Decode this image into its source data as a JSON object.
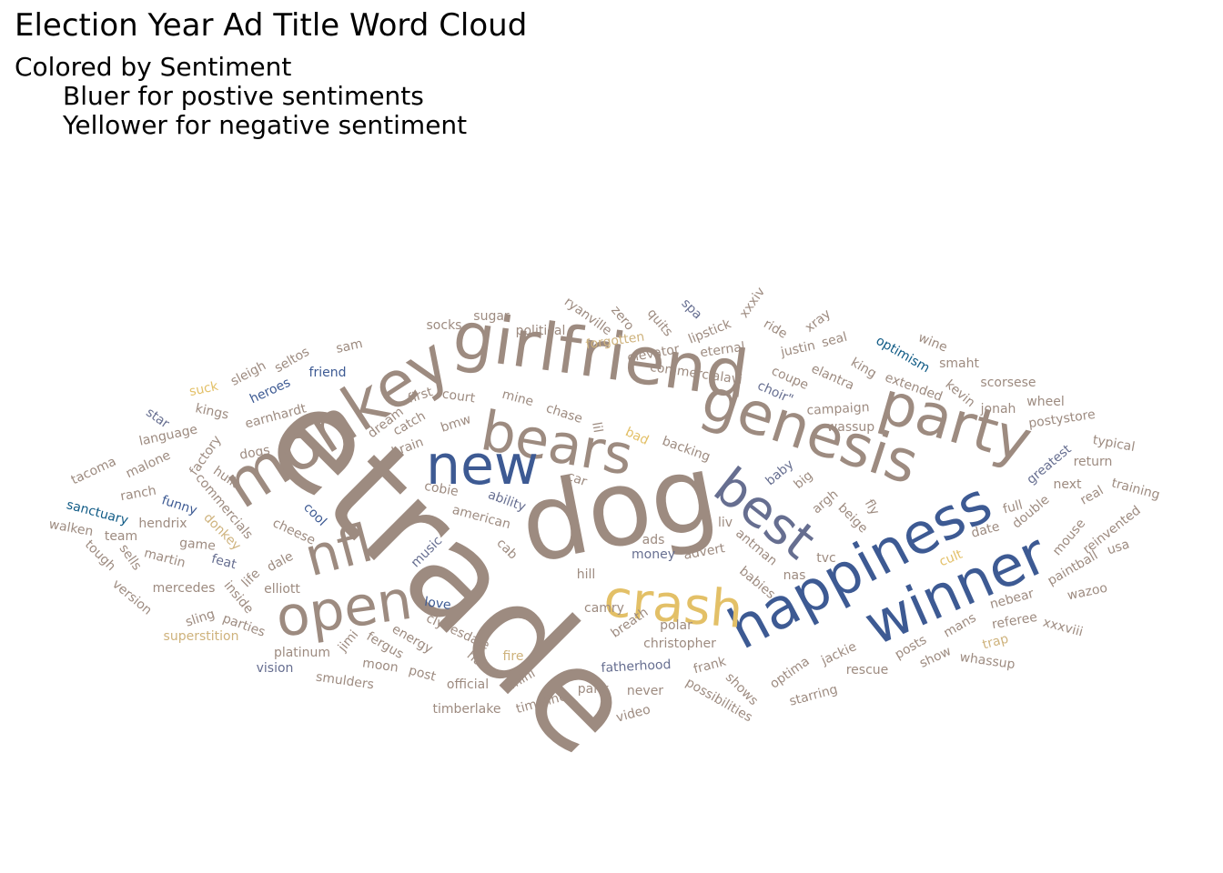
{
  "title": "Election Year Ad Title Word Cloud",
  "subtitle": {
    "line1": "Colored by Sentiment",
    "line2": "Bluer for postive sentiments",
    "line3": "Yellower for negative sentiment"
  },
  "chart_data": {
    "type": "wordcloud",
    "colors": {
      "neutral": "#9d8b80",
      "positive": "#3d5a93",
      "strong_positive": "#0f5a85",
      "mid_positive": "#666e90",
      "negative": "#e3c067",
      "mild_negative": "#ceb27c"
    },
    "words": [
      {
        "text": "etrade",
        "sentiment": "neutral"
      },
      {
        "text": "dog",
        "sentiment": "neutral"
      },
      {
        "text": "girlfriend",
        "sentiment": "neutral"
      },
      {
        "text": "genesis",
        "sentiment": "neutral"
      },
      {
        "text": "monkey",
        "sentiment": "neutral"
      },
      {
        "text": "bears",
        "sentiment": "neutral"
      },
      {
        "text": "party",
        "sentiment": "neutral"
      },
      {
        "text": "happiness",
        "sentiment": "positive"
      },
      {
        "text": "winner",
        "sentiment": "positive"
      },
      {
        "text": "best",
        "sentiment": "mid_positive"
      },
      {
        "text": "new",
        "sentiment": "positive"
      },
      {
        "text": "crash",
        "sentiment": "negative"
      },
      {
        "text": "open",
        "sentiment": "neutral"
      },
      {
        "text": "nfl",
        "sentiment": "neutral"
      },
      {
        "text": "sugar",
        "sentiment": "neutral"
      },
      {
        "text": "political",
        "sentiment": "neutral"
      },
      {
        "text": "socks",
        "sentiment": "neutral"
      },
      {
        "text": "ryanville",
        "sentiment": "neutral"
      },
      {
        "text": "zero",
        "sentiment": "neutral"
      },
      {
        "text": "quits",
        "sentiment": "neutral"
      },
      {
        "text": "spa",
        "sentiment": "mid_positive"
      },
      {
        "text": "lipstick",
        "sentiment": "neutral"
      },
      {
        "text": "xxxiv",
        "sentiment": "neutral"
      },
      {
        "text": "ride",
        "sentiment": "neutral"
      },
      {
        "text": "xray",
        "sentiment": "neutral"
      },
      {
        "text": "seal",
        "sentiment": "neutral"
      },
      {
        "text": "justin",
        "sentiment": "neutral"
      },
      {
        "text": "optimism",
        "sentiment": "strong_positive"
      },
      {
        "text": "wine",
        "sentiment": "neutral"
      },
      {
        "text": "smaht",
        "sentiment": "neutral"
      },
      {
        "text": "scorsese",
        "sentiment": "neutral"
      },
      {
        "text": "forgotten",
        "sentiment": "mild_negative"
      },
      {
        "text": "elevator",
        "sentiment": "neutral"
      },
      {
        "text": "eternal",
        "sentiment": "neutral"
      },
      {
        "text": "commercialavi",
        "sentiment": "neutral"
      },
      {
        "text": "coupe",
        "sentiment": "neutral"
      },
      {
        "text": "elantra",
        "sentiment": "neutral"
      },
      {
        "text": "king",
        "sentiment": "neutral"
      },
      {
        "text": "extended",
        "sentiment": "neutral"
      },
      {
        "text": "kevin",
        "sentiment": "neutral"
      },
      {
        "text": "jonah",
        "sentiment": "neutral"
      },
      {
        "text": "wheel",
        "sentiment": "neutral"
      },
      {
        "text": "postystore",
        "sentiment": "neutral"
      },
      {
        "text": "typical",
        "sentiment": "neutral"
      },
      {
        "text": "return",
        "sentiment": "neutral"
      },
      {
        "text": "training",
        "sentiment": "neutral"
      },
      {
        "text": "sam",
        "sentiment": "neutral"
      },
      {
        "text": "seltos",
        "sentiment": "neutral"
      },
      {
        "text": "sleigh",
        "sentiment": "neutral"
      },
      {
        "text": "friend",
        "sentiment": "positive"
      },
      {
        "text": "suck",
        "sentiment": "negative"
      },
      {
        "text": "heroes",
        "sentiment": "positive"
      },
      {
        "text": "kings",
        "sentiment": "neutral"
      },
      {
        "text": "star",
        "sentiment": "mid_positive"
      },
      {
        "text": "earnhardt",
        "sentiment": "neutral"
      },
      {
        "text": "language",
        "sentiment": "neutral"
      },
      {
        "text": "first",
        "sentiment": "neutral"
      },
      {
        "text": "court",
        "sentiment": "neutral"
      },
      {
        "text": "mine",
        "sentiment": "neutral"
      },
      {
        "text": "chase",
        "sentiment": "neutral"
      },
      {
        "text": "choir\"",
        "sentiment": "mid_positive"
      },
      {
        "text": "campaign",
        "sentiment": "neutral"
      },
      {
        "text": "wassup",
        "sentiment": "neutral"
      },
      {
        "text": "dream",
        "sentiment": "neutral"
      },
      {
        "text": "catch",
        "sentiment": "neutral"
      },
      {
        "text": "bmw",
        "sentiment": "neutral"
      },
      {
        "text": "lil",
        "sentiment": "neutral"
      },
      {
        "text": "bad",
        "sentiment": "negative"
      },
      {
        "text": "backing",
        "sentiment": "neutral"
      },
      {
        "text": "brain",
        "sentiment": "neutral"
      },
      {
        "text": "dogs",
        "sentiment": "neutral"
      },
      {
        "text": "factory",
        "sentiment": "neutral"
      },
      {
        "text": "malone",
        "sentiment": "neutral"
      },
      {
        "text": "tacoma",
        "sentiment": "neutral"
      },
      {
        "text": "hulk",
        "sentiment": "neutral"
      },
      {
        "text": "ranch",
        "sentiment": "neutral"
      },
      {
        "text": "commercials",
        "sentiment": "neutral"
      },
      {
        "text": "funny",
        "sentiment": "positive"
      },
      {
        "text": "sanctuary",
        "sentiment": "strong_positive"
      },
      {
        "text": "hendrix",
        "sentiment": "neutral"
      },
      {
        "text": "donkey",
        "sentiment": "mild_negative"
      },
      {
        "text": "cool",
        "sentiment": "positive"
      },
      {
        "text": "cheese",
        "sentiment": "neutral"
      },
      {
        "text": "walken",
        "sentiment": "neutral"
      },
      {
        "text": "team",
        "sentiment": "neutral"
      },
      {
        "text": "game",
        "sentiment": "neutral"
      },
      {
        "text": "tough",
        "sentiment": "neutral"
      },
      {
        "text": "sells",
        "sentiment": "neutral"
      },
      {
        "text": "martin",
        "sentiment": "neutral"
      },
      {
        "text": "feat",
        "sentiment": "mid_positive"
      },
      {
        "text": "dale",
        "sentiment": "neutral"
      },
      {
        "text": "life",
        "sentiment": "neutral"
      },
      {
        "text": "version",
        "sentiment": "neutral"
      },
      {
        "text": "mercedes",
        "sentiment": "neutral"
      },
      {
        "text": "inside",
        "sentiment": "neutral"
      },
      {
        "text": "elliott",
        "sentiment": "neutral"
      },
      {
        "text": "sling",
        "sentiment": "neutral"
      },
      {
        "text": "parties",
        "sentiment": "neutral"
      },
      {
        "text": "superstition",
        "sentiment": "mild_negative"
      },
      {
        "text": "platinum",
        "sentiment": "neutral"
      },
      {
        "text": "jimi",
        "sentiment": "neutral"
      },
      {
        "text": "vision",
        "sentiment": "mid_positive"
      },
      {
        "text": "smulders",
        "sentiment": "neutral"
      },
      {
        "text": "moon",
        "sentiment": "neutral"
      },
      {
        "text": "fergus",
        "sentiment": "neutral"
      },
      {
        "text": "energy",
        "sentiment": "neutral"
      },
      {
        "text": "post",
        "sentiment": "neutral"
      },
      {
        "text": "clydesdale",
        "sentiment": "neutral"
      },
      {
        "text": "hart",
        "sentiment": "neutral"
      },
      {
        "text": "official",
        "sentiment": "neutral"
      },
      {
        "text": "timberlake",
        "sentiment": "neutral"
      },
      {
        "text": "love",
        "sentiment": "positive"
      },
      {
        "text": "music",
        "sentiment": "mid_positive"
      },
      {
        "text": "cobie",
        "sentiment": "neutral"
      },
      {
        "text": "american",
        "sentiment": "neutral"
      },
      {
        "text": "ability",
        "sentiment": "mid_positive"
      },
      {
        "text": "car",
        "sentiment": "neutral"
      },
      {
        "text": "cab",
        "sentiment": "neutral"
      },
      {
        "text": "ads",
        "sentiment": "neutral"
      },
      {
        "text": "money",
        "sentiment": "mid_positive"
      },
      {
        "text": "hill",
        "sentiment": "neutral"
      },
      {
        "text": "camry",
        "sentiment": "neutral"
      },
      {
        "text": "breath",
        "sentiment": "neutral"
      },
      {
        "text": "polar",
        "sentiment": "neutral"
      },
      {
        "text": "christopher",
        "sentiment": "neutral"
      },
      {
        "text": "fatherhood",
        "sentiment": "mid_positive"
      },
      {
        "text": "fire",
        "sentiment": "mild_negative"
      },
      {
        "text": "mini",
        "sentiment": "neutral"
      },
      {
        "text": "timeline",
        "sentiment": "neutral"
      },
      {
        "text": "pahk",
        "sentiment": "neutral"
      },
      {
        "text": "never",
        "sentiment": "neutral"
      },
      {
        "text": "video",
        "sentiment": "neutral"
      },
      {
        "text": "frank",
        "sentiment": "neutral"
      },
      {
        "text": "shows",
        "sentiment": "neutral"
      },
      {
        "text": "possibilities",
        "sentiment": "neutral"
      },
      {
        "text": "advert",
        "sentiment": "neutral"
      },
      {
        "text": "liv",
        "sentiment": "neutral"
      },
      {
        "text": "antman",
        "sentiment": "neutral"
      },
      {
        "text": "babies",
        "sentiment": "neutral"
      },
      {
        "text": "nas",
        "sentiment": "neutral"
      },
      {
        "text": "tvc",
        "sentiment": "neutral"
      },
      {
        "text": "argh",
        "sentiment": "neutral"
      },
      {
        "text": "beige",
        "sentiment": "neutral"
      },
      {
        "text": "fly",
        "sentiment": "neutral"
      },
      {
        "text": "baby",
        "sentiment": "mid_positive"
      },
      {
        "text": "big",
        "sentiment": "neutral"
      },
      {
        "text": "optima",
        "sentiment": "neutral"
      },
      {
        "text": "starring",
        "sentiment": "neutral"
      },
      {
        "text": "jackie",
        "sentiment": "neutral"
      },
      {
        "text": "rescue",
        "sentiment": "neutral"
      },
      {
        "text": "posts",
        "sentiment": "neutral"
      },
      {
        "text": "show",
        "sentiment": "neutral"
      },
      {
        "text": "mans",
        "sentiment": "neutral"
      },
      {
        "text": "whassup",
        "sentiment": "neutral"
      },
      {
        "text": "trap",
        "sentiment": "mild_negative"
      },
      {
        "text": "referee",
        "sentiment": "neutral"
      },
      {
        "text": "nebear",
        "sentiment": "neutral"
      },
      {
        "text": "xxxviii",
        "sentiment": "neutral"
      },
      {
        "text": "wazoo",
        "sentiment": "neutral"
      },
      {
        "text": "paintball",
        "sentiment": "neutral"
      },
      {
        "text": "cult",
        "sentiment": "negative"
      },
      {
        "text": "date",
        "sentiment": "neutral"
      },
      {
        "text": "full",
        "sentiment": "neutral"
      },
      {
        "text": "double",
        "sentiment": "neutral"
      },
      {
        "text": "mouse",
        "sentiment": "neutral"
      },
      {
        "text": "next",
        "sentiment": "neutral"
      },
      {
        "text": "greatest",
        "sentiment": "mid_positive"
      },
      {
        "text": "real",
        "sentiment": "neutral"
      },
      {
        "text": "reinvented",
        "sentiment": "neutral"
      },
      {
        "text": "usa",
        "sentiment": "neutral"
      }
    ]
  }
}
